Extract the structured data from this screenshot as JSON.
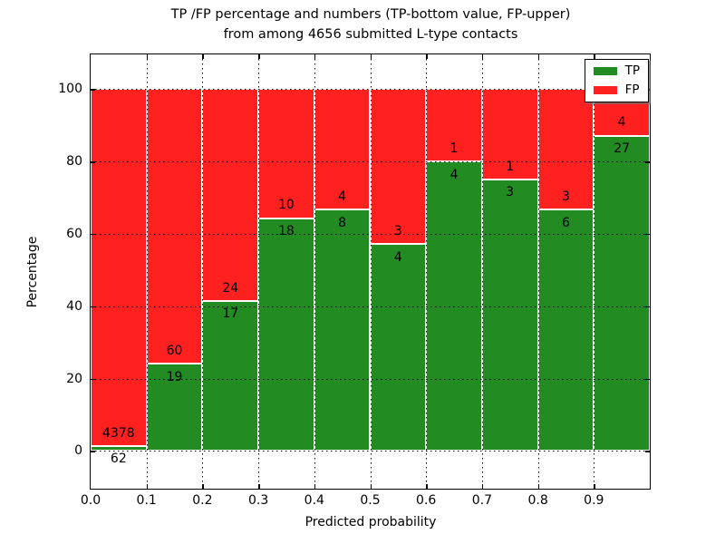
{
  "chart_data": {
    "type": "bar",
    "stacked": true,
    "title_line1": "TP /FP percentage and numbers (TP-bottom value, FP-upper)",
    "title_line2": "from among 4656 submitted L-type contacts",
    "xlabel": "Predicted probability",
    "ylabel": "Percentage",
    "total_contacts": 4656,
    "xlim": [
      0.0,
      1.0
    ],
    "ylim": [
      -10.4,
      109.6
    ],
    "grid": true,
    "grid_style": "dotted",
    "x_tick_labels": [
      "0.0",
      "0.1",
      "0.2",
      "0.3",
      "0.4",
      "0.5",
      "0.6",
      "0.7",
      "0.8",
      "0.9"
    ],
    "y_tick_values": [
      0,
      20,
      40,
      60,
      80,
      100
    ],
    "legend_position": "upper right",
    "legend": [
      {
        "label": "TP",
        "color": "#228b22"
      },
      {
        "label": "FP",
        "color": "#ff2020"
      }
    ],
    "colors": {
      "tp": "#228b22",
      "fp": "#ff2020",
      "bar_edge": "#ffffff",
      "grid": "#000000",
      "background": "#ffffff",
      "text": "#000000"
    },
    "bars": [
      {
        "bin_start": 0.0,
        "bin_end": 0.1,
        "tp": 62,
        "fp": 4378,
        "tp_pct": 1.4
      },
      {
        "bin_start": 0.1,
        "bin_end": 0.2,
        "tp": 19,
        "fp": 60,
        "tp_pct": 24.05
      },
      {
        "bin_start": 0.2,
        "bin_end": 0.3,
        "tp": 17,
        "fp": 24,
        "tp_pct": 41.46
      },
      {
        "bin_start": 0.3,
        "bin_end": 0.4,
        "tp": 18,
        "fp": 10,
        "tp_pct": 64.29
      },
      {
        "bin_start": 0.4,
        "bin_end": 0.5,
        "tp": 8,
        "fp": 4,
        "tp_pct": 66.67
      },
      {
        "bin_start": 0.5,
        "bin_end": 0.6,
        "tp": 4,
        "fp": 3,
        "tp_pct": 57.14
      },
      {
        "bin_start": 0.6,
        "bin_end": 0.7,
        "tp": 4,
        "fp": 1,
        "tp_pct": 80.0
      },
      {
        "bin_start": 0.7,
        "bin_end": 0.8,
        "tp": 3,
        "fp": 1,
        "tp_pct": 75.0
      },
      {
        "bin_start": 0.8,
        "bin_end": 0.9,
        "tp": 6,
        "fp": 3,
        "tp_pct": 66.67
      },
      {
        "bin_start": 0.9,
        "bin_end": 1.0,
        "tp": 27,
        "fp": 4,
        "tp_pct": 87.1
      }
    ]
  }
}
